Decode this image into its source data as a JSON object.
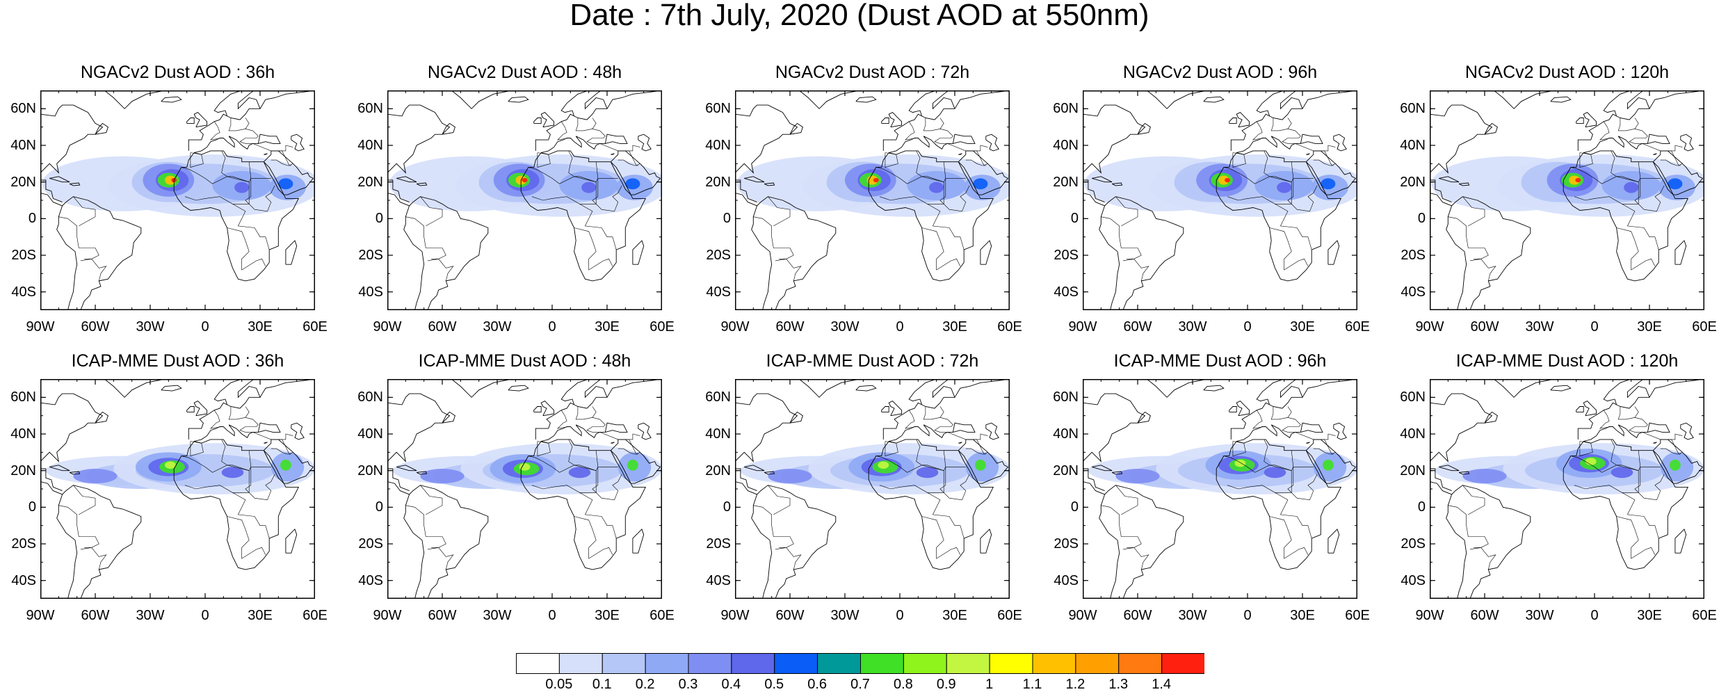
{
  "figure_title": "Date : 7th July, 2020 (Dust AOD at 550nm)",
  "panels": [
    {
      "title": "NGACv2 Dust AOD : 36h"
    },
    {
      "title": "NGACv2 Dust AOD : 48h"
    },
    {
      "title": "NGACv2 Dust AOD : 72h"
    },
    {
      "title": "NGACv2 Dust AOD : 96h"
    },
    {
      "title": "NGACv2 Dust AOD : 120h"
    },
    {
      "title": "ICAP-MME Dust AOD : 36h"
    },
    {
      "title": "ICAP-MME Dust AOD : 48h"
    },
    {
      "title": "ICAP-MME Dust AOD : 72h"
    },
    {
      "title": "ICAP-MME Dust AOD : 96h"
    },
    {
      "title": "ICAP-MME Dust AOD : 120h"
    }
  ],
  "axes": {
    "lon_range": [
      -90,
      60
    ],
    "lat_range": [
      -50,
      70
    ],
    "lat_ticks": [
      {
        "value": 60,
        "label": "60N"
      },
      {
        "value": 40,
        "label": "40N"
      },
      {
        "value": 20,
        "label": "20N"
      },
      {
        "value": 0,
        "label": "0"
      },
      {
        "value": -20,
        "label": "20S"
      },
      {
        "value": -40,
        "label": "40S"
      }
    ],
    "lon_ticks": [
      {
        "value": -90,
        "label": "90W"
      },
      {
        "value": -60,
        "label": "60W"
      },
      {
        "value": -30,
        "label": "30W"
      },
      {
        "value": 0,
        "label": "0"
      },
      {
        "value": 30,
        "label": "30E"
      },
      {
        "value": 60,
        "label": "60E"
      }
    ]
  },
  "colorbar": {
    "labels": [
      "0.05",
      "0.1",
      "0.2",
      "0.3",
      "0.4",
      "0.5",
      "0.6",
      "0.7",
      "0.8",
      "0.9",
      "1",
      "1.1",
      "1.2",
      "1.3",
      "1.4"
    ],
    "colors": [
      "#ffffff",
      "#d6e0fb",
      "#b5c7f7",
      "#8fa9f5",
      "#7f8ef2",
      "#5f67eb",
      "#0a5df6",
      "#009999",
      "#3fe026",
      "#8ff31c",
      "#c3f640",
      "#ffff00",
      "#ffc000",
      "#ffa000",
      "#ff7a10",
      "#ff2010"
    ]
  }
}
